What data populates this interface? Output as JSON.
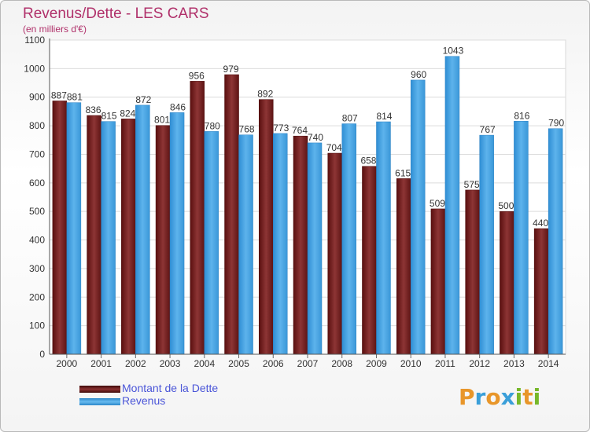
{
  "title": "Revenus/Dette - LES CARS",
  "subtitle": "(en milliers d'€)",
  "logo": {
    "text": "Proxiti",
    "letters": [
      "P",
      "r",
      "o",
      "x",
      "i",
      "t",
      "i"
    ],
    "colors": [
      "#e8962a",
      "#3a9fd9",
      "#e8962a",
      "#3a9fd9",
      "#77b82a",
      "#e8962a",
      "#77b82a"
    ]
  },
  "chart_data": {
    "type": "bar",
    "title": "Revenus/Dette - LES CARS",
    "subtitle": "(en milliers d'€)",
    "categories": [
      "2000",
      "2001",
      "2002",
      "2003",
      "2004",
      "2005",
      "2006",
      "2007",
      "2008",
      "2009",
      "2010",
      "2011",
      "2012",
      "2013",
      "2014"
    ],
    "series": [
      {
        "name": "Montant de la Dette",
        "color": "#7a1f1f",
        "values": [
          887,
          836,
          824,
          801,
          956,
          979,
          892,
          764,
          704,
          658,
          615,
          509,
          575,
          500,
          440
        ],
        "labels": [
          "887",
          "836",
          "824",
          "801",
          "956",
          "979",
          "892",
          "764",
          "704",
          "658",
          "615",
          "509",
          "575",
          "500",
          "440"
        ]
      },
      {
        "name": "Revenus",
        "color": "#4aa3e0",
        "values": [
          881,
          815,
          872,
          846,
          780,
          768,
          773,
          740,
          807,
          814,
          960,
          1043,
          767,
          816,
          790
        ],
        "labels": [
          "881",
          "815",
          "872",
          "846",
          "780",
          "768",
          "773",
          "740",
          "807",
          "814",
          "960",
          "1043",
          "767",
          "816",
          "790"
        ]
      }
    ],
    "ylim": [
      0,
      1100
    ],
    "yticks": [
      "0",
      "100",
      "200",
      "300",
      "400",
      "500",
      "600",
      "700",
      "800",
      "900",
      "1000",
      "1100"
    ],
    "grid": true,
    "legend_position": "bottom-left"
  }
}
